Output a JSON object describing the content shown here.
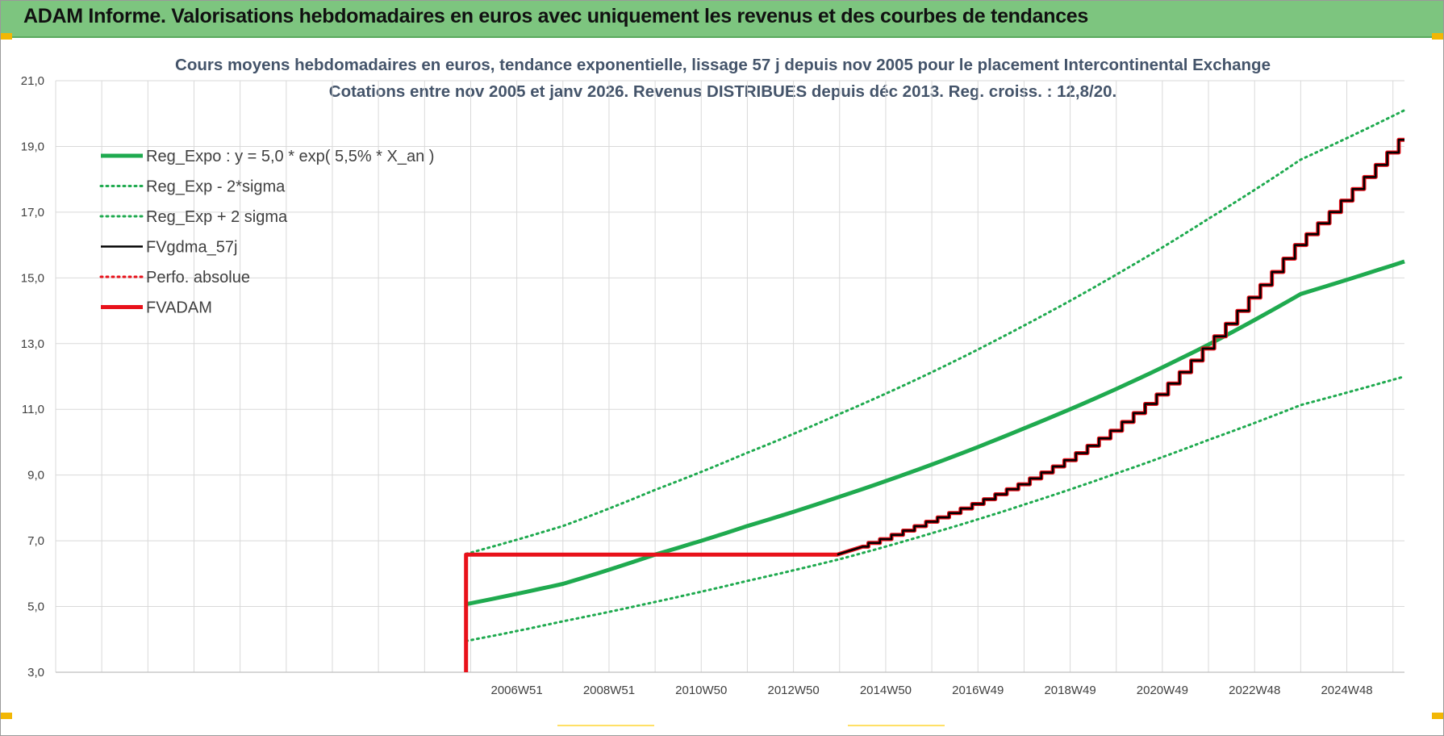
{
  "header": {
    "title": "ADAM Informe. Valorisations hebdomadaires en euros avec uniquement les revenus et des courbes de tendances"
  },
  "colors": {
    "banner": "#7dc57f",
    "green": "#1faa4f",
    "red": "#e8111a",
    "black": "#000000",
    "grid": "#d9d9d9"
  },
  "chart_data": {
    "type": "line",
    "title_line1": "Cours moyens hebdomadaires en euros, tendance exponentielle, lissage 57 j depuis nov 2005  pour le placement Intercontinental Exchange",
    "title_line2": "Cotations entre nov 2005 et janv 2026. Revenus DISTRIBUES depuis déc 2013.  Reg. croiss. : 12,8/20.",
    "xlabel": "",
    "ylabel": "",
    "ylim": [
      3,
      21
    ],
    "xlim": [
      1997.0,
      2026.25
    ],
    "y_ticks": [
      "3,0",
      "5,0",
      "7,0",
      "9,0",
      "11,0",
      "13,0",
      "15,0",
      "17,0",
      "19,0",
      "21,0"
    ],
    "x_ticks": [
      {
        "label": "2006W51",
        "x": 2007.0
      },
      {
        "label": "2008W51",
        "x": 2009.0
      },
      {
        "label": "2010W50",
        "x": 2011.0
      },
      {
        "label": "2012W50",
        "x": 2013.0
      },
      {
        "label": "2014W50",
        "x": 2015.0
      },
      {
        "label": "2016W49",
        "x": 2017.0
      },
      {
        "label": "2018W49",
        "x": 2019.0
      },
      {
        "label": "2020W49",
        "x": 2021.0
      },
      {
        "label": "2022W48",
        "x": 2023.0
      },
      {
        "label": "2024W48",
        "x": 2025.0
      }
    ],
    "grid": true,
    "legend_position": "top-left",
    "series": [
      {
        "name": "Reg_Expo : y = 5,0 * exp( 5,5% *  X_an )",
        "style": "solid-thick",
        "color": "#1faa4f",
        "x": [
          2005.9,
          2008.0,
          2010.0,
          2012.0,
          2014.0,
          2016.0,
          2018.0,
          2020.0,
          2022.0,
          2024.0,
          2026.25
        ],
        "values": [
          5.07,
          5.69,
          6.58,
          7.45,
          8.34,
          9.32,
          10.42,
          11.62,
          12.97,
          14.51,
          15.5
        ]
      },
      {
        "name": "Reg_Exp - 2*sigma",
        "style": "dotted",
        "color": "#1faa4f",
        "x": [
          2005.9,
          2008.0,
          2010.0,
          2012.0,
          2014.0,
          2016.0,
          2018.0,
          2020.0,
          2022.0,
          2024.0,
          2026.25
        ],
        "values": [
          3.95,
          4.55,
          5.14,
          5.78,
          6.44,
          7.23,
          8.1,
          9.05,
          10.07,
          11.13,
          12.0
        ]
      },
      {
        "name": "Reg_Exp + 2 sigma",
        "style": "dotted",
        "color": "#1faa4f",
        "x": [
          2005.9,
          2008.0,
          2010.0,
          2012.0,
          2014.0,
          2016.0,
          2018.0,
          2020.0,
          2022.0,
          2024.0,
          2026.25
        ],
        "values": [
          6.6,
          7.45,
          8.55,
          9.68,
          10.86,
          12.13,
          13.55,
          15.1,
          16.8,
          18.6,
          20.1
        ]
      },
      {
        "name": "FVgdma_57j",
        "style": "solid",
        "color": "#000000",
        "x": [
          2013.95,
          2014.5,
          2015.0,
          2016.0,
          2017.0,
          2018.0,
          2019.0,
          2020.0,
          2021.0,
          2022.0,
          2023.0,
          2024.0,
          2025.0,
          2026.25
        ],
        "values": [
          6.58,
          6.82,
          7.05,
          7.58,
          8.12,
          8.72,
          9.45,
          10.35,
          11.45,
          12.85,
          14.4,
          16.0,
          17.35,
          19.2
        ]
      },
      {
        "name": "Perfo. absolue",
        "style": "dotted",
        "color": "#e8111a",
        "x": [
          2005.9,
          2013.95
        ],
        "values": [
          6.58,
          6.58
        ]
      },
      {
        "name": "FVADAM",
        "style": "solid-thick",
        "color": "#e8111a",
        "x": [
          2005.9,
          2005.9,
          2013.95,
          2014.5,
          2015.0,
          2016.0,
          2017.0,
          2018.0,
          2019.0,
          2020.0,
          2021.0,
          2022.0,
          2023.0,
          2024.0,
          2025.0,
          2026.25
        ],
        "values": [
          3.0,
          6.58,
          6.58,
          6.82,
          7.05,
          7.58,
          8.12,
          8.72,
          9.45,
          10.35,
          11.45,
          12.85,
          14.4,
          16.0,
          17.35,
          19.2
        ]
      }
    ]
  }
}
